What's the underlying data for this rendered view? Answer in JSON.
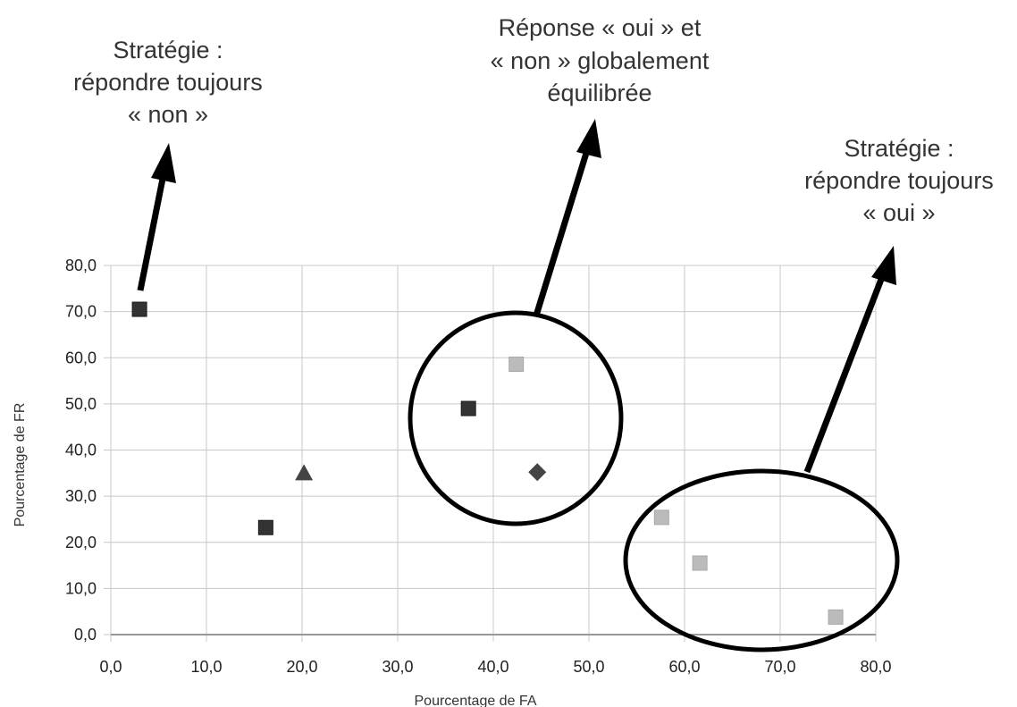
{
  "chart_data": {
    "type": "scatter",
    "xlabel": "Pourcentage de FA",
    "ylabel": "Pourcentage de FR",
    "xlim": [
      0,
      80
    ],
    "ylim": [
      0,
      80
    ],
    "xticks": [
      "0,0",
      "10,0",
      "20,0",
      "30,0",
      "40,0",
      "50,0",
      "60,0",
      "70,0",
      "80,0"
    ],
    "yticks": [
      "0,0",
      "10,0",
      "20,0",
      "30,0",
      "40,0",
      "50,0",
      "60,0",
      "70,0",
      "80,0"
    ],
    "grid": true,
    "points": [
      {
        "x": 3.0,
        "y": 70.5,
        "marker": "square",
        "color": "#333333"
      },
      {
        "x": 16.2,
        "y": 23.2,
        "marker": "square",
        "color": "#333333"
      },
      {
        "x": 20.2,
        "y": 35.0,
        "marker": "triangle",
        "color": "#444444"
      },
      {
        "x": 37.4,
        "y": 49.0,
        "marker": "square",
        "color": "#333333"
      },
      {
        "x": 42.4,
        "y": 58.6,
        "marker": "square",
        "color": "#bbbbbb"
      },
      {
        "x": 44.6,
        "y": 35.2,
        "marker": "diamond",
        "color": "#444444"
      },
      {
        "x": 57.6,
        "y": 25.4,
        "marker": "square",
        "color": "#bbbbbb"
      },
      {
        "x": 61.6,
        "y": 15.5,
        "marker": "square",
        "color": "#bbbbbb"
      },
      {
        "x": 75.8,
        "y": 3.8,
        "marker": "square",
        "color": "#bbbbbb"
      }
    ],
    "annotations": [
      {
        "lines": [
          "Stratégie :",
          "répondre toujours",
          "« non »"
        ]
      },
      {
        "lines": [
          "Réponse « oui » et",
          "« non » globalement",
          "équilibrée"
        ]
      },
      {
        "lines": [
          "Stratégie :",
          "répondre toujours",
          "« oui »"
        ]
      }
    ]
  }
}
